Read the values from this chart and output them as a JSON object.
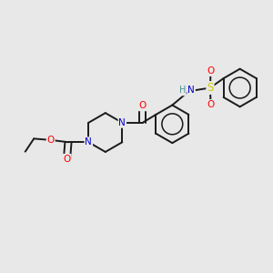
{
  "bg_color": "#e8e8e8",
  "bond_color": "#1a1a1a",
  "atom_colors": {
    "O": "#ff0000",
    "N": "#0000cd",
    "S": "#cccc00",
    "H": "#4a9090",
    "C": "#1a1a1a"
  },
  "figsize": [
    3.0,
    3.0
  ],
  "dpi": 100,
  "lw": 1.4
}
